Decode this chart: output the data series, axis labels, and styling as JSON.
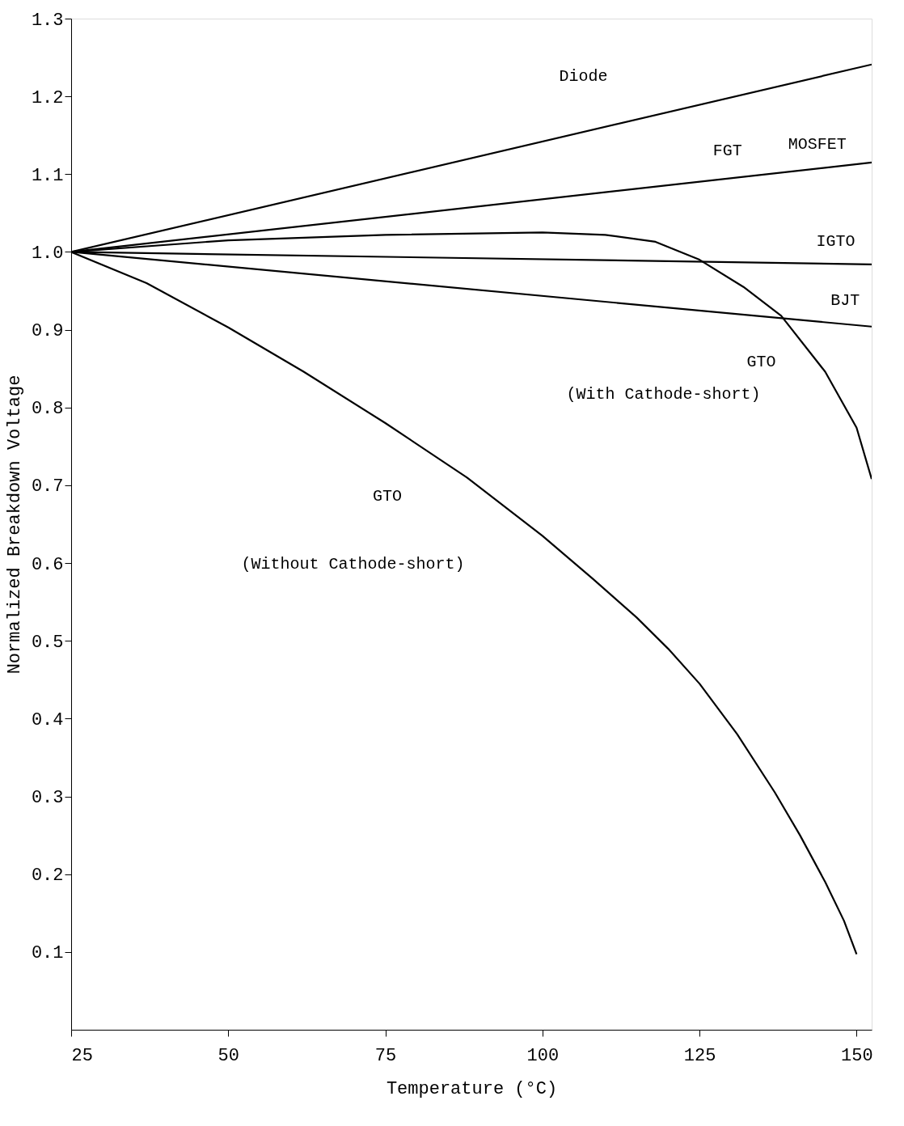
{
  "chart_data": {
    "type": "line",
    "xlabel": "Temperature (°C)",
    "ylabel": "Normalized Breakdown Voltage",
    "xlim": [
      25,
      152.4
    ],
    "ylim": [
      0,
      1.3
    ],
    "xticks": [
      25,
      50,
      75,
      100,
      125,
      150
    ],
    "yticks": [
      0.1,
      0.2,
      0.3,
      0.4,
      0.5,
      0.6,
      0.7,
      0.8,
      0.9,
      {
        "value": 1.0,
        "label": "1.0"
      },
      1.1,
      1.2,
      1.3
    ],
    "grid": false,
    "legend": false,
    "marker": "none",
    "line_style": "solid",
    "series": [
      {
        "color": "#000000",
        "x": [
          25,
          152.4
        ],
        "values": [
          1.0,
          1.241
        ]
      },
      {
        "color": "#000000",
        "x": [
          25,
          152.4
        ],
        "values": [
          1.0,
          1.115
        ]
      },
      {
        "color": "#000000",
        "x": [
          25,
          152.4
        ],
        "values": [
          1.0,
          0.984
        ]
      },
      {
        "color": "#000000",
        "x": [
          25,
          152.4
        ],
        "values": [
          1.0,
          0.904
        ]
      },
      {
        "color": "#000000",
        "x": [
          25,
          50,
          75,
          100,
          110,
          118,
          125,
          132,
          138,
          145,
          150,
          152.4
        ],
        "values": [
          1.0,
          1.015,
          1.022,
          1.025,
          1.022,
          1.013,
          0.99,
          0.955,
          0.918,
          0.846,
          0.774,
          0.708
        ]
      },
      {
        "color": "#000000",
        "x": [
          25,
          37,
          50,
          62,
          75,
          88,
          100,
          108,
          115,
          120,
          125,
          131,
          137,
          141,
          145,
          148,
          150
        ],
        "values": [
          1.0,
          0.96,
          0.903,
          0.846,
          0.78,
          0.71,
          0.635,
          0.58,
          0.53,
          0.49,
          0.445,
          0.38,
          0.305,
          0.25,
          0.19,
          0.14,
          0.097
        ]
      }
    ],
    "annotations": [
      "Diode",
      "FGT",
      "MOSFET",
      "IGTO",
      "BJT",
      "GTO",
      "(With Cathode-short)",
      "GTO",
      "(Without Cathode-short)"
    ]
  }
}
